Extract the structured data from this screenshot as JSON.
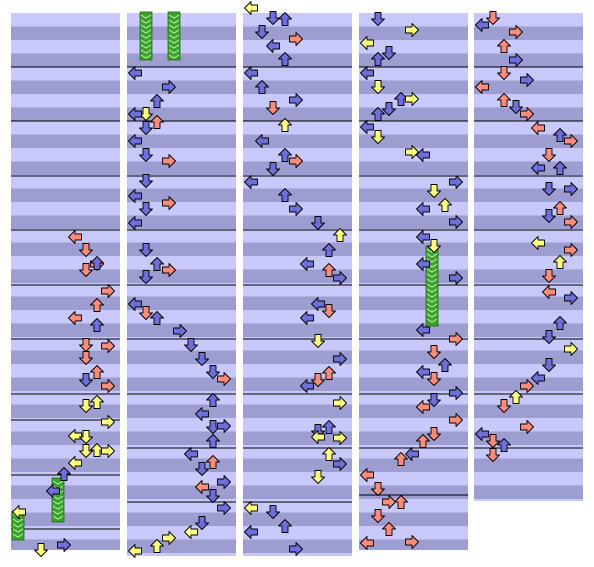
{
  "chart": {
    "columns": [
      {
        "id": "col-1",
        "measures": 10
      },
      {
        "id": "col-2",
        "measures": 10
      },
      {
        "id": "col-3",
        "measures": 10
      },
      {
        "id": "col-4",
        "measures": 10
      },
      {
        "id": "col-5",
        "measures": 9
      }
    ],
    "arrow_colors": {
      "quarter": "#ff8c7a",
      "eighth": "#6f6fdb",
      "sixteenth": "#ffff80",
      "hold_body": "#3ea32c",
      "hold_head": "#8c8cd8"
    },
    "icons": [
      "left-arrow-icon",
      "down-arrow-icon",
      "up-arrow-icon",
      "right-arrow-icon",
      "hold-note-icon"
    ]
  }
}
